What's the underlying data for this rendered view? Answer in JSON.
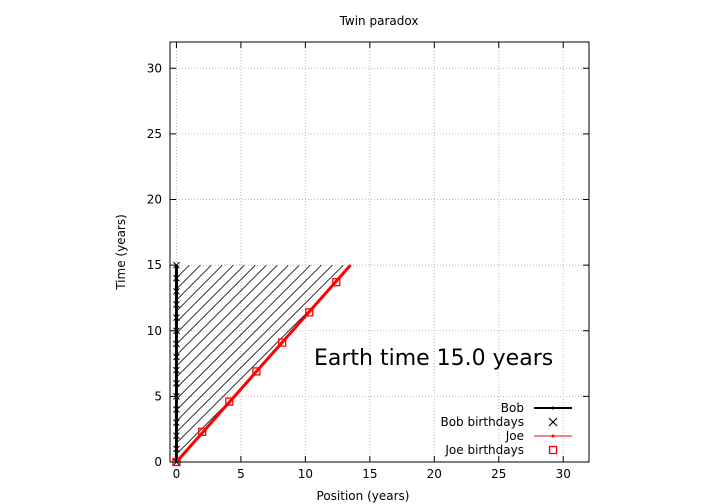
{
  "chart_data": {
    "type": "line",
    "title": "Twin paradox",
    "xlabel": "Position (years)",
    "ylabel": "Time (years)",
    "xlim": [
      -0.5,
      32
    ],
    "ylim": [
      0,
      32
    ],
    "xticks": [
      0,
      5,
      10,
      15,
      20,
      25,
      30
    ],
    "yticks": [
      0,
      5,
      10,
      15,
      20,
      25,
      30
    ],
    "grid": true,
    "legend_position": "bottom-right",
    "annotation": "Earth time 15.0 years",
    "shaded_region": {
      "pattern": "diagonal hatch",
      "vertices": [
        [
          0,
          0
        ],
        [
          13.5,
          15
        ],
        [
          0,
          15
        ]
      ]
    },
    "series": [
      {
        "name": "Bob",
        "kind": "line",
        "color": "#000000",
        "x": [
          0,
          0
        ],
        "y": [
          0,
          15
        ]
      },
      {
        "name": "Bob birthdays",
        "kind": "marker-x",
        "color": "#000000",
        "x": [
          0,
          0,
          0,
          0,
          0,
          0,
          0,
          0,
          0,
          0,
          0,
          0,
          0,
          0,
          0,
          0
        ],
        "y": [
          0,
          1,
          2,
          3,
          4,
          5,
          6,
          7,
          8,
          9,
          10,
          11,
          12,
          13,
          14,
          15
        ]
      },
      {
        "name": "Joe",
        "kind": "line",
        "color": "#ff0000",
        "x": [
          0,
          13.5
        ],
        "y": [
          0,
          15
        ]
      },
      {
        "name": "Joe birthdays",
        "kind": "marker-square",
        "color": "#ff0000",
        "x": [
          0,
          2.0,
          4.1,
          6.2,
          8.2,
          10.3,
          12.4
        ],
        "y": [
          0,
          2.3,
          4.6,
          6.9,
          9.1,
          11.4,
          13.7
        ]
      }
    ]
  }
}
